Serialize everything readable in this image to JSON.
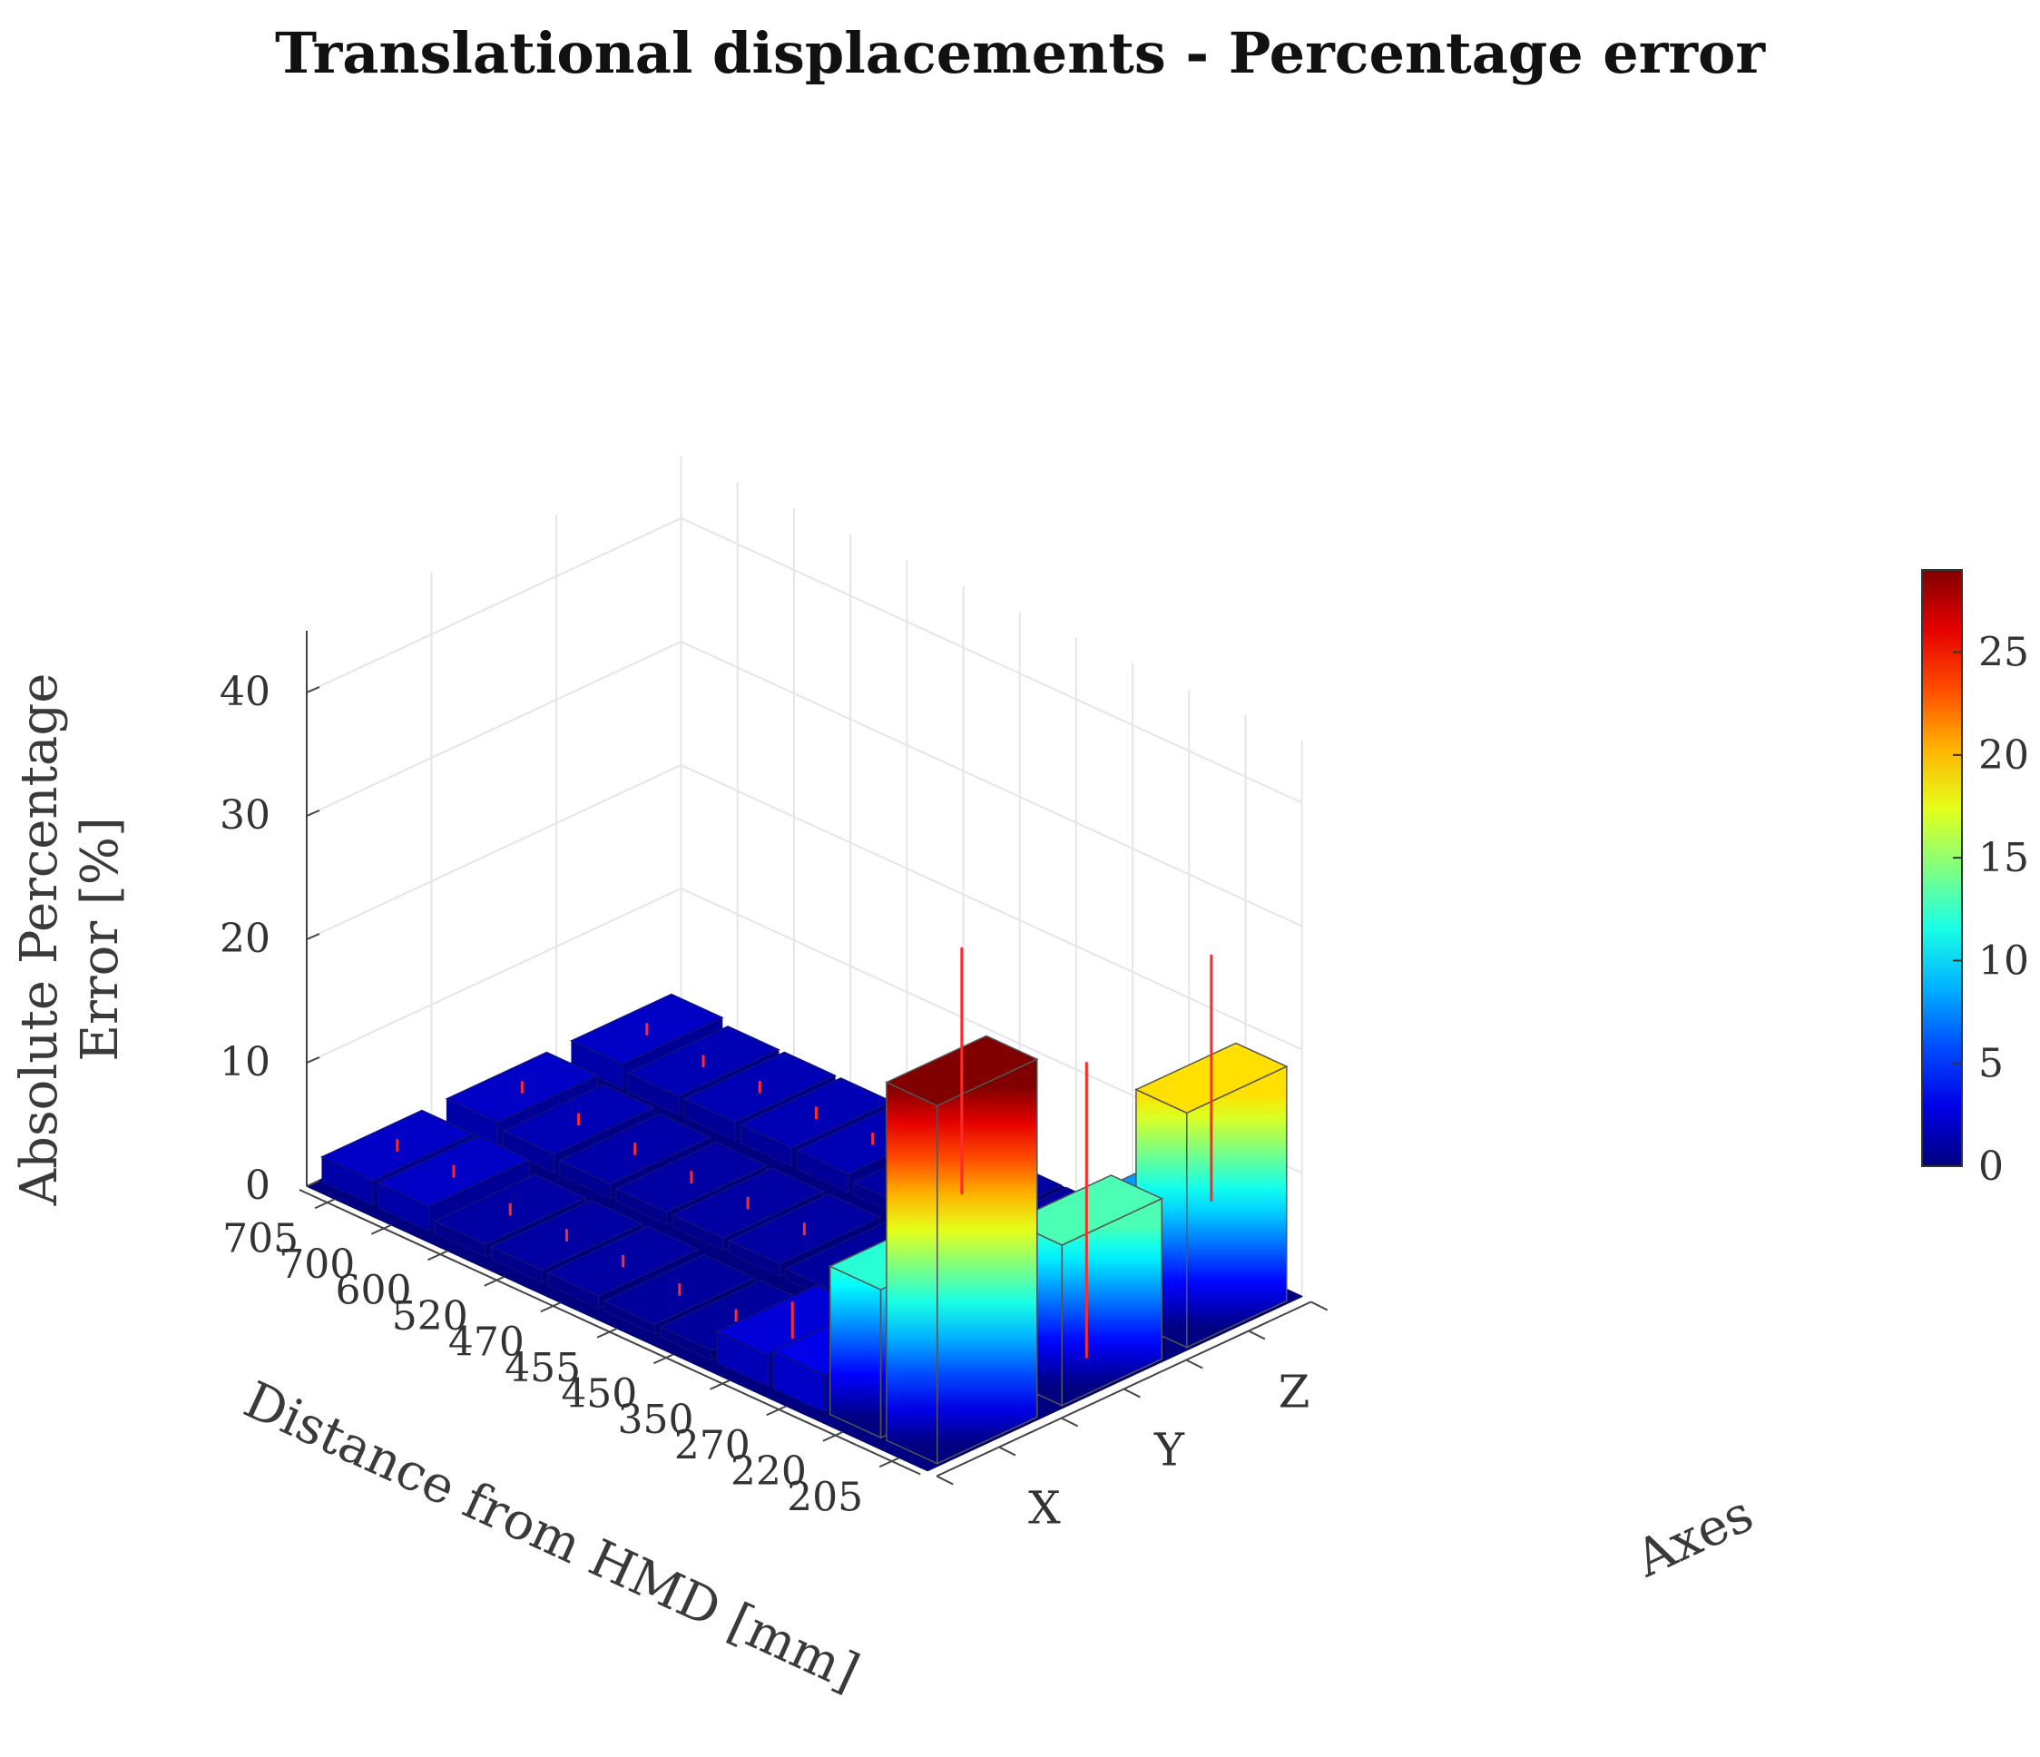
{
  "chart_data": {
    "type": "bar3d",
    "title": "Translational displacements - Percentage error",
    "zlabel_lines": [
      "Absolute Percentage",
      "Error [%]"
    ],
    "xlabel": "Distance from HMD [mm]",
    "ylabel": "Axes",
    "distances": [
      "705",
      "700",
      "600",
      "520",
      "470",
      "455",
      "450",
      "350",
      "270",
      "220",
      "205"
    ],
    "axes": [
      "X",
      "Y",
      "Z"
    ],
    "zlim": [
      0,
      45
    ],
    "zticks": [
      "0",
      "10",
      "20",
      "30",
      "40"
    ],
    "colorbar": {
      "colormap": "jet",
      "range": [
        0,
        29
      ],
      "ticks": [
        "0",
        "5",
        "10",
        "15",
        "20",
        "25"
      ]
    },
    "grid": true,
    "series": [
      {
        "name": "X",
        "values": [
          2,
          2,
          1,
          1,
          1,
          0.8,
          0.8,
          2.5,
          3,
          12,
          29
        ]
      },
      {
        "name": "Y",
        "values": [
          2,
          1.5,
          1.2,
          1,
          1,
          1,
          0.8,
          0.8,
          0.8,
          6,
          13
        ]
      },
      {
        "name": "Z",
        "values": [
          2,
          1.5,
          1.5,
          1.5,
          1.5,
          1,
          1,
          1,
          1.5,
          8,
          19
        ]
      }
    ],
    "error_bars": {
      "X": [
        0.5,
        0.5,
        0.5,
        0.5,
        0.5,
        0.5,
        0.5,
        1.5,
        1.5,
        3,
        10
      ],
      "Y": [
        0.5,
        0.5,
        0.5,
        0.5,
        0.5,
        0.5,
        0.5,
        0.5,
        0.5,
        3,
        12
      ],
      "Z": [
        0.5,
        0.5,
        0.5,
        0.5,
        0.5,
        0.5,
        0.5,
        0.5,
        0.5,
        3,
        10
      ]
    }
  }
}
